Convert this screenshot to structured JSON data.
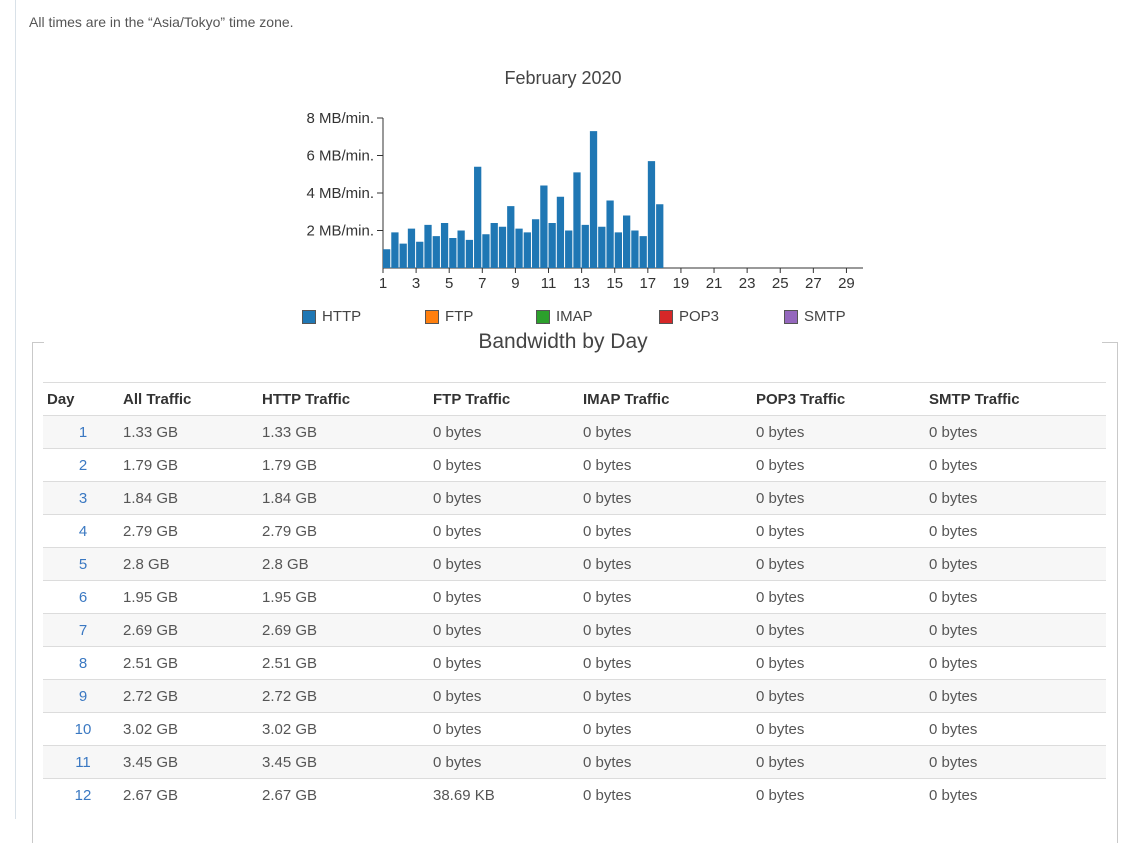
{
  "timezone_note": "All times are in the “Asia/Tokyo” time zone.",
  "chart_data": {
    "type": "bar",
    "title": "February 2020",
    "y_tick_labels": [
      "2 MB/min.",
      "4 MB/min.",
      "6 MB/min.",
      "8 MB/min."
    ],
    "ylim": [
      0,
      8
    ],
    "x_tick_labels": [
      "1",
      "3",
      "5",
      "7",
      "9",
      "11",
      "13",
      "15",
      "17",
      "19",
      "21",
      "23",
      "25",
      "27",
      "29"
    ],
    "xlim": [
      1,
      30
    ],
    "series": [
      {
        "name": "HTTP",
        "color": "#1f77b4",
        "x": [
          1,
          1.5,
          2,
          2.5,
          3,
          3.5,
          4,
          4.5,
          5,
          5.5,
          6,
          6.5,
          7,
          7.5,
          8,
          8.5,
          9,
          9.5,
          10,
          10.5,
          11,
          11.5,
          12,
          12.5,
          13,
          13.5,
          14,
          14.5,
          15,
          15.5,
          16,
          16.5,
          17,
          17.5
        ],
        "values": [
          1.0,
          1.9,
          1.3,
          2.1,
          1.4,
          2.3,
          1.7,
          2.4,
          1.6,
          2.0,
          1.5,
          5.4,
          1.8,
          2.4,
          2.2,
          3.3,
          2.1,
          1.9,
          2.6,
          4.4,
          2.4,
          3.8,
          2.0,
          5.1,
          2.3,
          7.3,
          2.2,
          3.6,
          1.9,
          2.8,
          2.0,
          1.7,
          5.7,
          3.4
        ]
      }
    ],
    "legend": [
      "HTTP",
      "FTP",
      "IMAP",
      "POP3",
      "SMTP"
    ],
    "legend_colors": [
      "#1f77b4",
      "#ff7f0e",
      "#2ca02c",
      "#d62728",
      "#9467bd"
    ]
  },
  "section_title": "Bandwidth by Day",
  "table": {
    "columns": [
      "Day",
      "All Traffic",
      "HTTP Traffic",
      "FTP Traffic",
      "IMAP Traffic",
      "POP3 Traffic",
      "SMTP Traffic"
    ],
    "rows": [
      [
        "1",
        "1.33 GB",
        "1.33 GB",
        "0 bytes",
        "0 bytes",
        "0 bytes",
        "0 bytes"
      ],
      [
        "2",
        "1.79 GB",
        "1.79 GB",
        "0 bytes",
        "0 bytes",
        "0 bytes",
        "0 bytes"
      ],
      [
        "3",
        "1.84 GB",
        "1.84 GB",
        "0 bytes",
        "0 bytes",
        "0 bytes",
        "0 bytes"
      ],
      [
        "4",
        "2.79 GB",
        "2.79 GB",
        "0 bytes",
        "0 bytes",
        "0 bytes",
        "0 bytes"
      ],
      [
        "5",
        "2.8 GB",
        "2.8 GB",
        "0 bytes",
        "0 bytes",
        "0 bytes",
        "0 bytes"
      ],
      [
        "6",
        "1.95 GB",
        "1.95 GB",
        "0 bytes",
        "0 bytes",
        "0 bytes",
        "0 bytes"
      ],
      [
        "7",
        "2.69 GB",
        "2.69 GB",
        "0 bytes",
        "0 bytes",
        "0 bytes",
        "0 bytes"
      ],
      [
        "8",
        "2.51 GB",
        "2.51 GB",
        "0 bytes",
        "0 bytes",
        "0 bytes",
        "0 bytes"
      ],
      [
        "9",
        "2.72 GB",
        "2.72 GB",
        "0 bytes",
        "0 bytes",
        "0 bytes",
        "0 bytes"
      ],
      [
        "10",
        "3.02 GB",
        "3.02 GB",
        "0 bytes",
        "0 bytes",
        "0 bytes",
        "0 bytes"
      ],
      [
        "11",
        "3.45 GB",
        "3.45 GB",
        "0 bytes",
        "0 bytes",
        "0 bytes",
        "0 bytes"
      ],
      [
        "12",
        "2.67 GB",
        "2.67 GB",
        "38.69 KB",
        "0 bytes",
        "0 bytes",
        "0 bytes"
      ]
    ]
  }
}
